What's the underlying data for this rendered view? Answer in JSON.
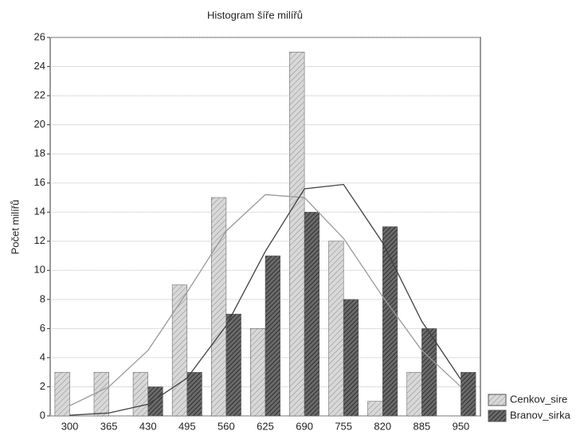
{
  "chart_data": {
    "type": "bar",
    "title": "Histogram šíře milířů",
    "y_label": "Počet milířů",
    "categories": [
      "300",
      "365",
      "430",
      "495",
      "560",
      "625",
      "690",
      "755",
      "820",
      "885",
      "950"
    ],
    "series": [
      {
        "name": "Cenkov_sire",
        "color": "#d8d8d8",
        "hatch": "#8a8a8a",
        "values": [
          3,
          3,
          3,
          9,
          15,
          6,
          25,
          12,
          1,
          3,
          0
        ]
      },
      {
        "name": "Branov_sirka",
        "color": "#6a6a6a",
        "hatch": "#202020",
        "values": [
          0,
          0,
          2,
          3,
          7,
          11,
          14,
          8,
          13,
          6,
          3
        ]
      }
    ],
    "curves": [
      {
        "color": "#9a9a9a",
        "values": [
          0.7,
          2,
          4.5,
          8.5,
          12.7,
          15.2,
          15,
          12.2,
          8.2,
          4.5,
          2
        ]
      },
      {
        "color": "#404040",
        "values": [
          0.05,
          0.2,
          0.8,
          2.6,
          6.2,
          11.3,
          15.6,
          15.9,
          11.9,
          6.5,
          2.5
        ]
      }
    ],
    "ylim": [
      0,
      26
    ],
    "yticks": [
      0,
      2,
      4,
      6,
      8,
      10,
      12,
      14,
      16,
      18,
      20,
      22,
      24,
      26
    ],
    "grid": true
  }
}
